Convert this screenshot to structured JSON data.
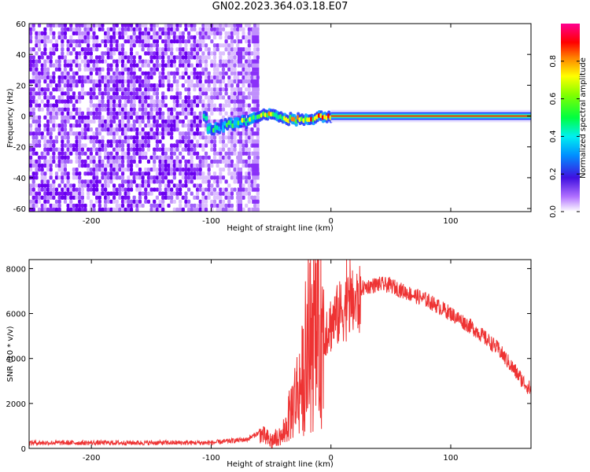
{
  "figure": {
    "title": "GN02.2023.364.03.18.E07"
  },
  "chart_data": [
    {
      "type": "heatmap",
      "xlabel": "Height of straight line (km)",
      "ylabel": "Frequency (Hz)",
      "xlim": [
        -252,
        167
      ],
      "ylim": [
        -62,
        60
      ],
      "xticks": [
        -200,
        -100,
        0,
        100
      ],
      "xtick_labels": [
        "-200",
        "-100",
        "0",
        "100"
      ],
      "yticks": [
        -60,
        -40,
        -20,
        0,
        20,
        40,
        60
      ],
      "ytick_labels": [
        "-60",
        "-40",
        "-20",
        "0",
        "20",
        "40",
        "60"
      ],
      "colorbar": {
        "label": "Normalized spectral amplitude",
        "range": [
          0,
          1
        ],
        "ticks": [
          0.0,
          0.2,
          0.4,
          0.6,
          0.8
        ],
        "tick_labels": [
          "0.0",
          "0.2",
          "0.4",
          "0.6",
          "0.8"
        ],
        "colormap": "rainbow (white-purple-blue-cyan-green-yellow-orange-red-magenta)"
      },
      "ridge": {
        "description_of_data": "strong narrowband signal",
        "points": [
          {
            "x": -105,
            "y": -9
          },
          {
            "x": -95,
            "y": -7
          },
          {
            "x": -85,
            "y": -5
          },
          {
            "x": -75,
            "y": -4
          },
          {
            "x": -65,
            "y": -2
          },
          {
            "x": -55,
            "y": 1
          },
          {
            "x": -45,
            "y": 0
          },
          {
            "x": -35,
            "y": -2
          },
          {
            "x": -25,
            "y": -2
          },
          {
            "x": -15,
            "y": -1
          },
          {
            "x": -5,
            "y": 0
          },
          {
            "x": 0,
            "y": 0
          },
          {
            "x": 167,
            "y": 0
          }
        ]
      },
      "noise_region_x": [
        -252,
        -60
      ],
      "grid": false
    },
    {
      "type": "line",
      "xlabel": "Height of straight line (km)",
      "ylabel": "SNR (10 * v/v)",
      "xlim": [
        -252,
        167
      ],
      "ylim": [
        0,
        8400
      ],
      "xticks": [
        -200,
        -100,
        0,
        100
      ],
      "xtick_labels": [
        "-200",
        "-100",
        "0",
        "100"
      ],
      "yticks": [
        0,
        2000,
        4000,
        6000,
        8000
      ],
      "ytick_labels": [
        "0",
        "2000",
        "4000",
        "6000",
        "8000"
      ],
      "grid": false,
      "series": [
        {
          "color": "#ee3333",
          "envelope_x": [
            -252,
            -150,
            -100,
            -70,
            -60,
            -50,
            -40,
            -30,
            -20,
            -10,
            0,
            10,
            20,
            30,
            40,
            50,
            60,
            80,
            100,
            120,
            140,
            160,
            167
          ],
          "envelope_y": [
            250,
            250,
            250,
            400,
            700,
            300,
            600,
            2500,
            4000,
            5500,
            6000,
            6700,
            7000,
            7200,
            7300,
            7250,
            7000,
            6600,
            6000,
            5300,
            4400,
            3000,
            2600
          ]
        }
      ]
    }
  ]
}
